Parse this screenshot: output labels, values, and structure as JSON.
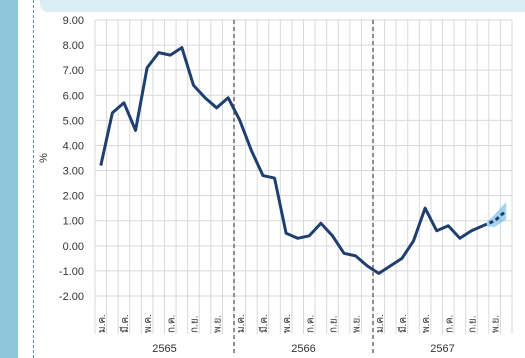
{
  "chart_data": {
    "type": "line",
    "title": "",
    "xlabel": "",
    "ylabel": "%",
    "ylim": [
      -2.0,
      9.0
    ],
    "ytick_step": 1.0,
    "y_ticks": [
      "9.00",
      "8.00",
      "7.00",
      "6.00",
      "5.00",
      "4.00",
      "3.00",
      "2.00",
      "1.00",
      "0.00",
      "-1.00",
      "-2.00"
    ],
    "grid": true,
    "years": [
      {
        "label": "2565",
        "start": 0
      },
      {
        "label": "2566",
        "start": 12
      },
      {
        "label": "2567",
        "start": 24
      }
    ],
    "month_labels": [
      "ม.ค.",
      "",
      "มี.ค.",
      "",
      "พ.ค.",
      "",
      "ก.ค.",
      "",
      "ก.ย.",
      "",
      "พ.ย.",
      ""
    ],
    "x": [
      0,
      1,
      2,
      3,
      4,
      5,
      6,
      7,
      8,
      9,
      10,
      11,
      12,
      13,
      14,
      15,
      16,
      17,
      18,
      19,
      20,
      21,
      22,
      23,
      24,
      25,
      26,
      27,
      28,
      29,
      30,
      31,
      32,
      33
    ],
    "values": [
      3.2,
      5.3,
      5.7,
      4.6,
      7.1,
      7.7,
      7.6,
      7.9,
      6.4,
      5.9,
      5.5,
      5.9,
      5.0,
      3.8,
      2.8,
      2.7,
      0.5,
      0.3,
      0.4,
      0.9,
      0.4,
      -0.3,
      -0.4,
      -0.8,
      -1.1,
      -0.8,
      -0.5,
      0.2,
      1.5,
      0.6,
      0.8,
      0.3,
      0.6,
      0.8
    ],
    "forecast": {
      "x": [
        33,
        34,
        35
      ],
      "values": [
        0.8,
        1.0,
        1.4
      ],
      "band_low": [
        0.8,
        0.75,
        1.05
      ],
      "band_high": [
        0.8,
        1.25,
        1.75
      ]
    },
    "colors": {
      "line": "#1f3f6e",
      "forecast": "#1f3f6e",
      "band": "#5aaee8",
      "grid": "#d9d9d9",
      "divider": "#555555",
      "stripe": "#8ec6d9",
      "banner": "#dbeef5"
    }
  }
}
